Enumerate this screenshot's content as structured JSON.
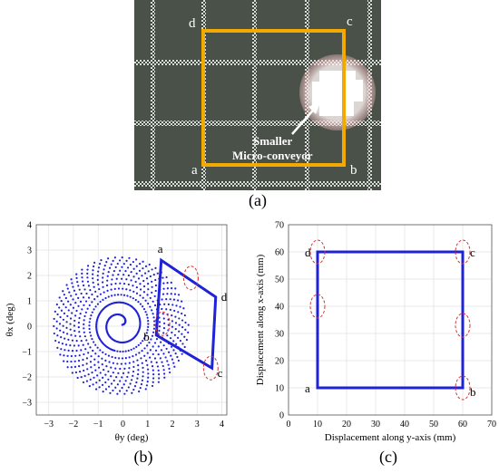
{
  "figure": {
    "caption_a": "(a)",
    "caption_b": "(b)",
    "caption_c": "(c)"
  },
  "panel_a": {
    "corner_labels": [
      "a",
      "b",
      "c",
      "d"
    ],
    "annotation_line1": "Smaller",
    "annotation_line2": "Micro-conveyor",
    "colors": {
      "frame": "#f2a900",
      "background": "#4a5148",
      "grid_dots": "#d8dcd6",
      "glow": "#ffe0e0"
    }
  },
  "chart_data": [
    {
      "type": "scatter",
      "panel": "b",
      "xlabel": "θy (deg)",
      "ylabel": "θx (deg)",
      "xlim": [
        -3.5,
        4.2
      ],
      "ylim": [
        -3.5,
        4
      ],
      "xticks": [
        -3,
        -2,
        -1,
        0,
        1,
        2,
        3,
        4
      ],
      "yticks": [
        -3,
        -2,
        -1,
        0,
        1,
        2,
        3,
        4
      ],
      "grid": true,
      "spiral": {
        "center": [
          -0.1,
          0.05
        ],
        "max_radius": 2.75,
        "turns": 12
      },
      "path": [
        {
          "label": "a",
          "x": 1.55,
          "y": 2.6
        },
        {
          "label": "d",
          "x": 3.75,
          "y": 1.15
        },
        {
          "label": "c",
          "x": 3.6,
          "y": -1.65
        },
        {
          "label": "b",
          "x": 1.35,
          "y": -0.35
        }
      ],
      "highlights": [
        {
          "x": 2.75,
          "y": 1.9
        },
        {
          "x": 1.6,
          "y": 0.1
        },
        {
          "x": 3.55,
          "y": -1.65
        }
      ],
      "colors": {
        "series": "#1f22d6",
        "highlight": "#e03030"
      }
    },
    {
      "type": "line",
      "panel": "c",
      "xlabel": "Displacement along y-axis (mm)",
      "ylabel": "Displacement along x-axis (mm)",
      "xlim": [
        0,
        70
      ],
      "ylim": [
        0,
        70
      ],
      "xticks": [
        0,
        10,
        20,
        30,
        40,
        50,
        60,
        70
      ],
      "yticks": [
        0,
        10,
        20,
        30,
        40,
        50,
        60,
        70
      ],
      "grid": true,
      "path": [
        {
          "label": "a",
          "x": 10,
          "y": 10
        },
        {
          "label": "b",
          "x": 60,
          "y": 10
        },
        {
          "label": "c",
          "x": 60,
          "y": 60
        },
        {
          "label": "d",
          "x": 10,
          "y": 60
        }
      ],
      "highlights": [
        {
          "x": 10,
          "y": 60
        },
        {
          "x": 60,
          "y": 60
        },
        {
          "x": 10,
          "y": 40
        },
        {
          "x": 60,
          "y": 33
        },
        {
          "x": 60,
          "y": 10
        }
      ],
      "colors": {
        "series": "#1f22d6",
        "highlight": "#e03030"
      }
    }
  ]
}
